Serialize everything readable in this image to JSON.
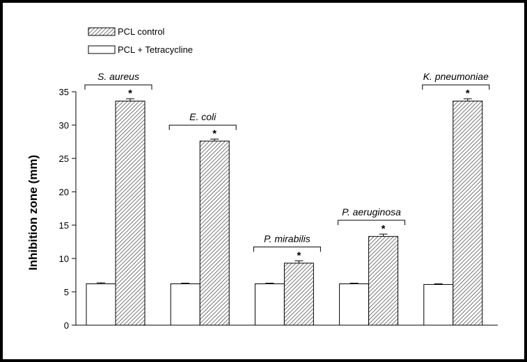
{
  "chart_data": {
    "type": "bar",
    "categories": [
      "S. aureus",
      "E. coli",
      "P. mirabilis",
      "P. aeruginosa",
      "K. pneumoniae"
    ],
    "series": [
      {
        "name": "PCL + Tetracycline",
        "values": [
          6.2,
          6.2,
          6.2,
          6.2,
          6.1
        ],
        "errors": [
          0.15,
          0.1,
          0.1,
          0.1,
          0.1
        ],
        "fill": "white"
      },
      {
        "name": "PCL control",
        "values": [
          33.6,
          27.6,
          9.3,
          13.3,
          33.6
        ],
        "errors": [
          0.35,
          0.3,
          0.35,
          0.35,
          0.35
        ],
        "fill": "hatched"
      }
    ],
    "significance": [
      "*",
      "*",
      "*",
      "*",
      "*"
    ],
    "ylabel": "Inhibition zone (mm)",
    "xlabel": "",
    "ylim": [
      0,
      35
    ],
    "yticks": [
      0,
      5,
      10,
      15,
      20,
      25,
      30,
      35
    ],
    "grid": false,
    "legend_position": "top-left"
  }
}
